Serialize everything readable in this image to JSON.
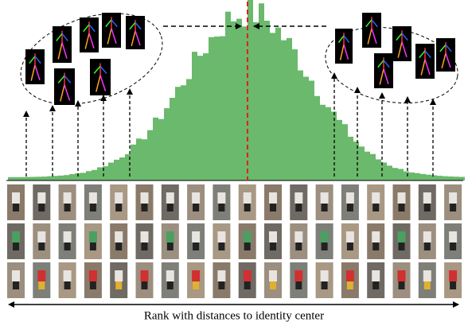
{
  "caption": "Rank with distances to identity center"
}
